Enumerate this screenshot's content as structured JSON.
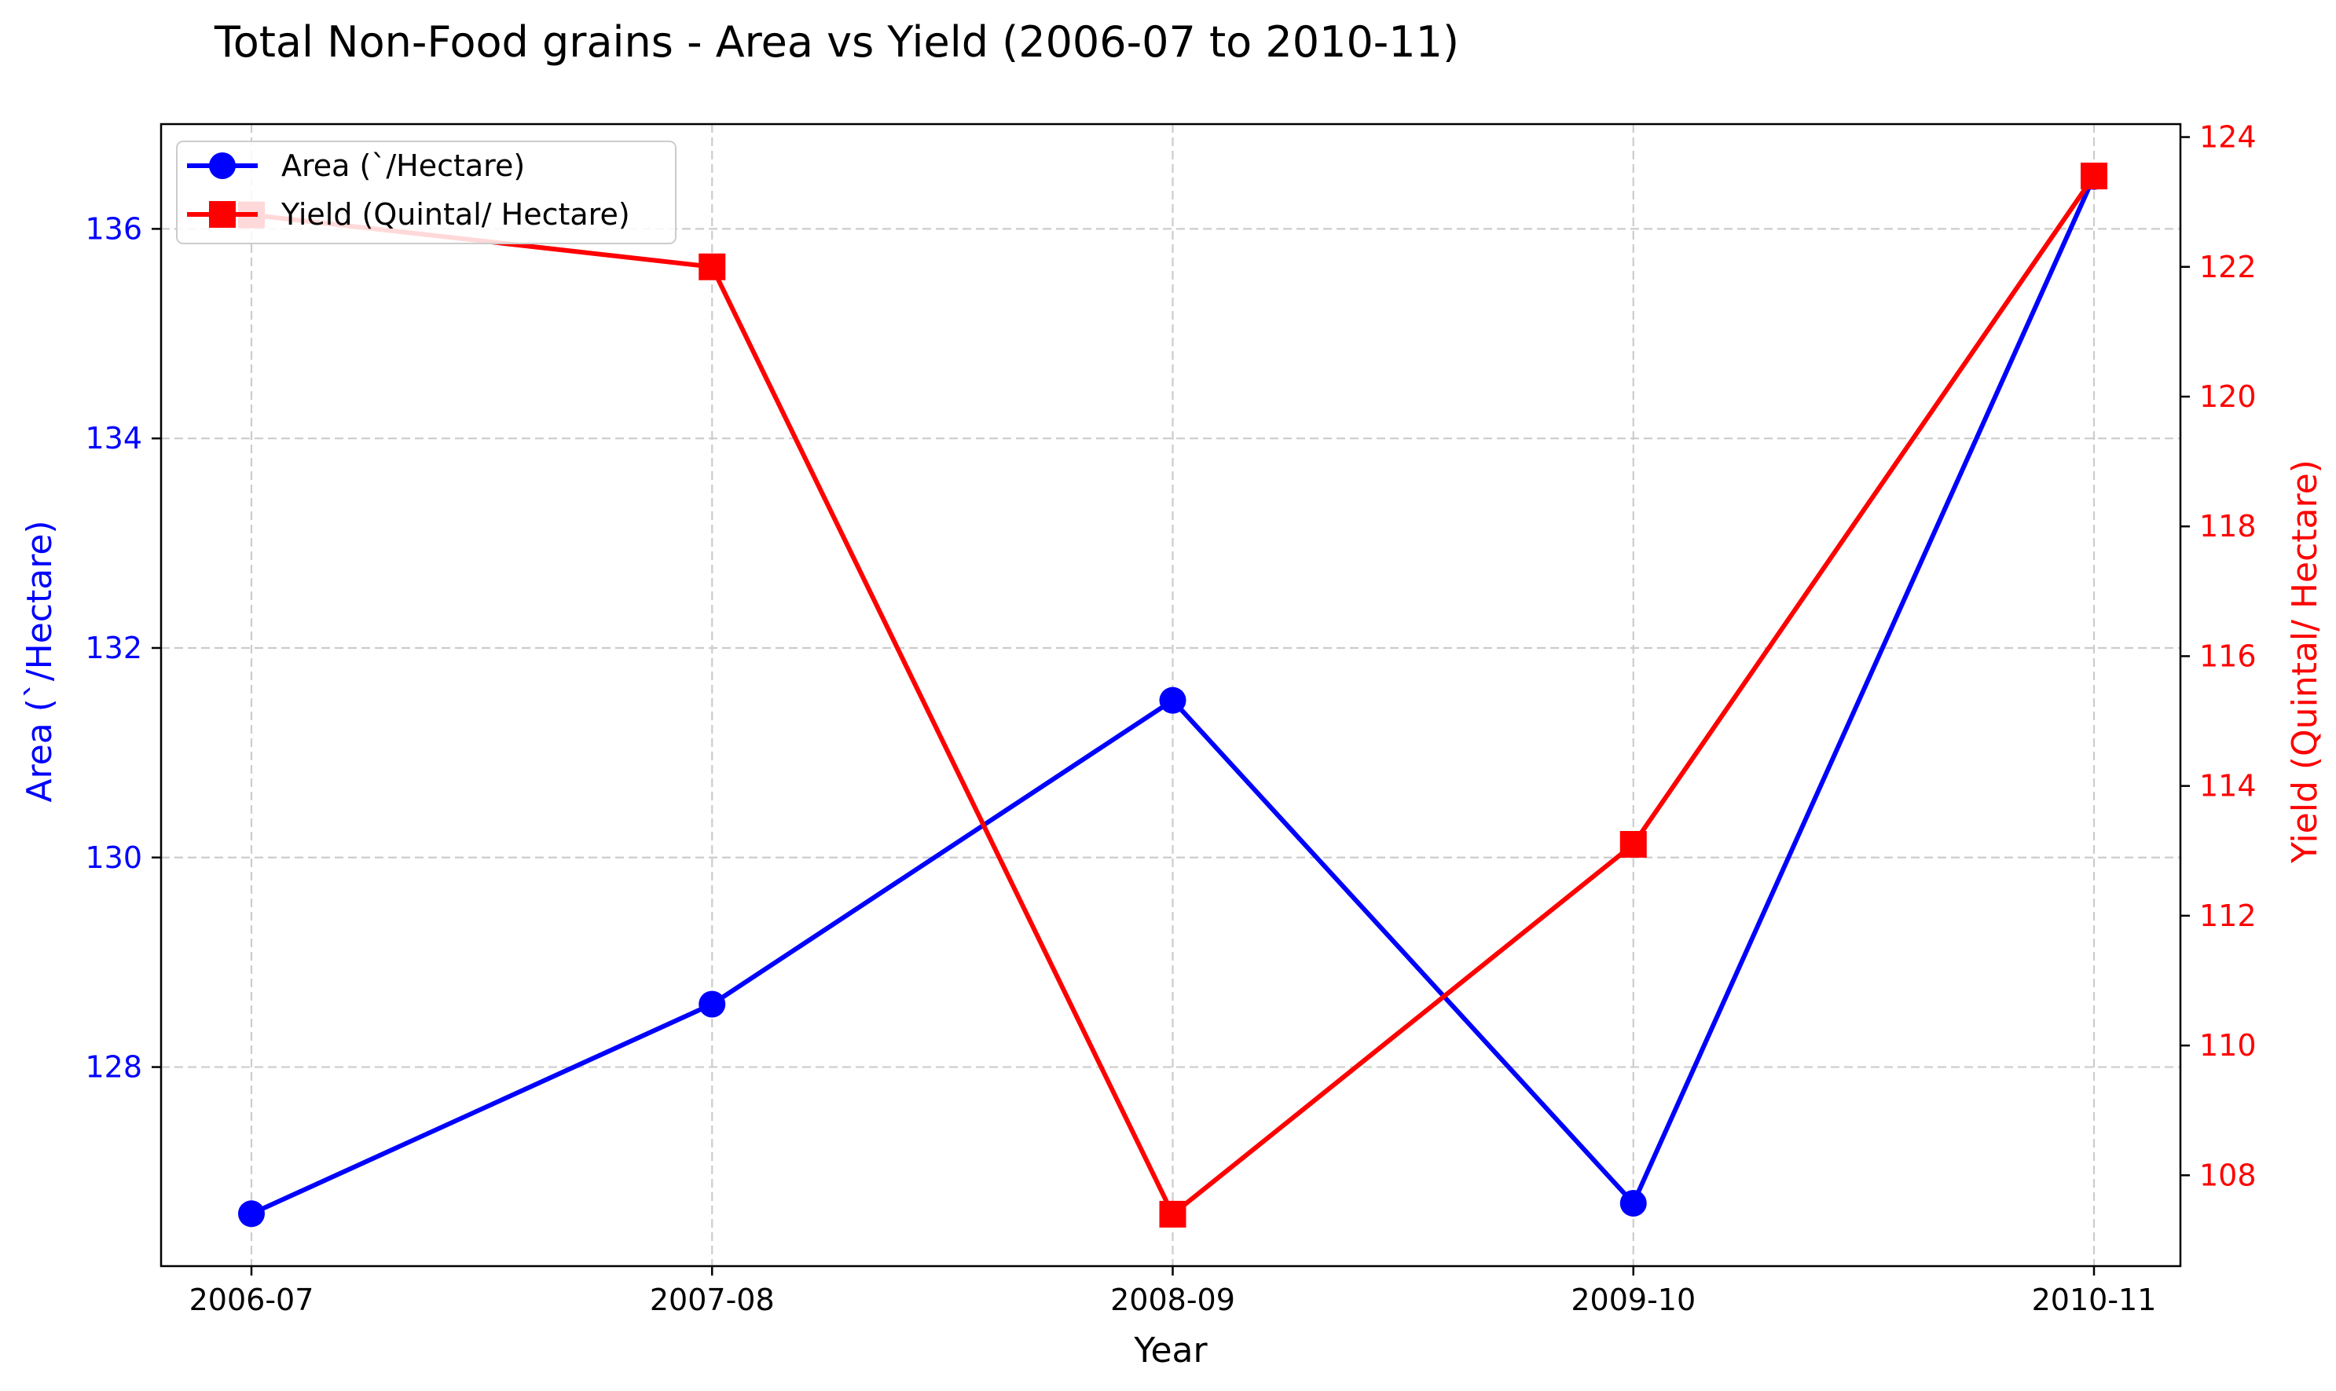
{
  "chart_data": {
    "type": "line",
    "title": "Total Non-Food grains  - Area vs Yield (2006-07 to 2010-11)",
    "xlabel": "Year",
    "categories": [
      "2006-07",
      "2007-08",
      "2008-09",
      "2009-10",
      "2010-11"
    ],
    "grid": true,
    "legend_position": "top-left",
    "y_left": {
      "label": "Area (`/Hectare)",
      "ylim": [
        126.1,
        137.0
      ],
      "ticks": [
        128,
        130,
        132,
        134,
        136
      ],
      "color": "#0000ff"
    },
    "y_right": {
      "label": "Yield (Quintal/ Hectare)",
      "ylim": [
        106.6,
        124.2
      ],
      "ticks": [
        108,
        110,
        112,
        114,
        116,
        118,
        120,
        122,
        124
      ],
      "color": "#ff0000"
    },
    "series": [
      {
        "name": "Area (`/Hectare)",
        "axis": "left",
        "color": "#0000ff",
        "marker": "circle",
        "values": [
          126.6,
          128.6,
          131.5,
          126.7,
          136.5
        ]
      },
      {
        "name": "Yield (Quintal/ Hectare)",
        "axis": "right",
        "color": "#ff0000",
        "marker": "square",
        "values": [
          122.8,
          122.0,
          107.4,
          113.1,
          123.4
        ]
      }
    ]
  }
}
